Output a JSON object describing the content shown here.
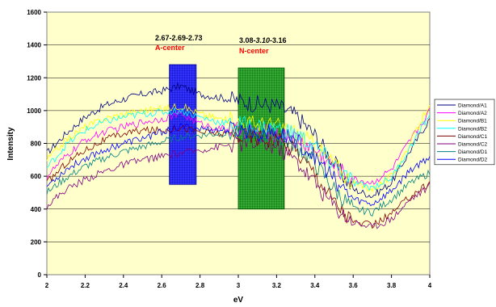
{
  "chart_data": {
    "type": "line",
    "xlabel": "eV",
    "ylabel": "Intensity",
    "xlim": [
      2,
      4
    ],
    "ylim": [
      0,
      1600
    ],
    "x_ticks": [
      "2",
      "2.2",
      "2.4",
      "2.6",
      "2.8",
      "3",
      "3.2",
      "3.4",
      "3.6",
      "3.8",
      "4"
    ],
    "y_ticks": [
      "0",
      "200",
      "400",
      "600",
      "800",
      "1000",
      "1200",
      "1400",
      "1600"
    ],
    "grid": true,
    "legend_position": "right",
    "plot_background": "#FFFFCC",
    "x": [
      2.0,
      2.1,
      2.2,
      2.3,
      2.4,
      2.5,
      2.6,
      2.7,
      2.8,
      2.9,
      3.0,
      3.1,
      3.2,
      3.3,
      3.4,
      3.5,
      3.6,
      3.7,
      3.8,
      3.9,
      4.0
    ],
    "series": [
      {
        "name": "Diamond/A1",
        "color": "#000080",
        "values": [
          740,
          860,
          960,
          1030,
          1070,
          1100,
          1120,
          1150,
          1100,
          1080,
          1060,
          1040,
          1030,
          970,
          850,
          680,
          520,
          480,
          560,
          760,
          950
        ]
      },
      {
        "name": "Diamond/A2",
        "color": "#FF00FF",
        "values": [
          600,
          720,
          820,
          870,
          900,
          930,
          950,
          980,
          920,
          890,
          880,
          870,
          860,
          830,
          760,
          660,
          580,
          560,
          640,
          820,
          1000
        ]
      },
      {
        "name": "Diamond/B1",
        "color": "#FFFF00",
        "values": [
          700,
          820,
          900,
          950,
          980,
          1000,
          1010,
          1030,
          980,
          950,
          930,
          920,
          910,
          870,
          790,
          680,
          560,
          520,
          600,
          800,
          1050
        ]
      },
      {
        "name": "Diamond/B2",
        "color": "#00FFFF",
        "values": [
          650,
          790,
          880,
          930,
          960,
          980,
          990,
          1000,
          960,
          930,
          920,
          900,
          890,
          860,
          780,
          670,
          560,
          530,
          590,
          780,
          980
        ]
      },
      {
        "name": "Diamond/C1",
        "color": "#800000",
        "values": [
          560,
          680,
          760,
          820,
          860,
          880,
          880,
          900,
          870,
          860,
          850,
          840,
          820,
          760,
          620,
          450,
          320,
          300,
          370,
          480,
          560
        ]
      },
      {
        "name": "Diamond/C2",
        "color": "#800080",
        "values": [
          420,
          520,
          580,
          630,
          670,
          700,
          720,
          740,
          760,
          780,
          800,
          800,
          780,
          700,
          560,
          420,
          320,
          290,
          340,
          460,
          540
        ]
      },
      {
        "name": "Diamond/D1",
        "color": "#008080",
        "values": [
          500,
          590,
          660,
          710,
          750,
          780,
          810,
          840,
          850,
          860,
          860,
          850,
          840,
          790,
          680,
          520,
          400,
          380,
          460,
          560,
          620
        ]
      },
      {
        "name": "Diamond/D2",
        "color": "#0000FF",
        "values": [
          540,
          640,
          710,
          760,
          800,
          830,
          870,
          900,
          890,
          880,
          880,
          870,
          860,
          820,
          720,
          580,
          460,
          430,
          510,
          640,
          720
        ]
      }
    ],
    "bands": [
      {
        "x0": 2.64,
        "x1": 2.78,
        "y0": 550,
        "y1": 1280,
        "color": "#3333FF",
        "edge": "#000099",
        "label_line1": "2.67-2.69-2.73",
        "label_line2": "A-center"
      },
      {
        "x0": 3.0,
        "x1": 3.24,
        "y0": 400,
        "y1": 1260,
        "color": "#33AA33",
        "edge": "#005500",
        "label_line1_parts": [
          "3.08-",
          "3.10",
          "-3.16"
        ],
        "label_line2": "N-center"
      }
    ],
    "label_color": "#FF0000"
  }
}
